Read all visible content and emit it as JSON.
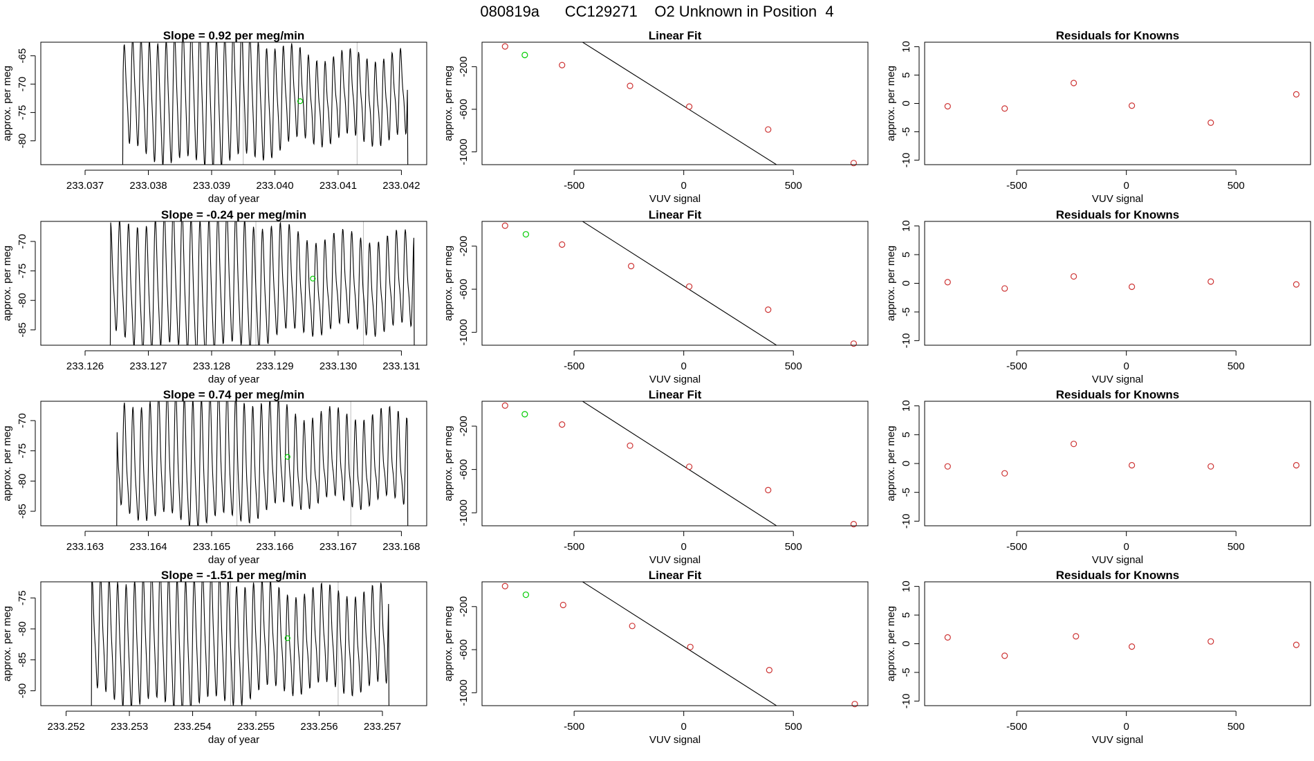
{
  "page": {
    "title": "080819a      CC129271    O2 Unknown in Position  4"
  },
  "colors": {
    "known": "#cd3333",
    "unknown": "#00cc00",
    "line": "#000000",
    "gridline": "#bebebe"
  },
  "chart_data": [
    {
      "type": "line",
      "row": 0,
      "title": "Slope =  0.92  per meg/min",
      "xlabel": "day of year",
      "ylabel": "approx. per meg",
      "xlim": [
        233.0363,
        233.0424
      ],
      "ylim": [
        -84.2,
        -62.6
      ],
      "xticks": [
        233.037,
        233.038,
        233.039,
        233.04,
        233.041,
        233.042
      ],
      "xtick_labels": [
        "233.037",
        "233.038",
        "233.039",
        "233.040",
        "233.041",
        "233.042"
      ],
      "yticks": [
        -80,
        -75,
        -70,
        -65
      ],
      "trace_start": 233.0376,
      "trace_end": 233.0421,
      "cycles": 34,
      "phase": 0.3,
      "y_base": -72.5,
      "y_amp_lo": 6.5,
      "y_amp_hi": 11,
      "vlines": [
        233.0395,
        233.0413
      ],
      "marker": {
        "x": 233.0404,
        "y": -73
      }
    },
    {
      "type": "line",
      "row": 1,
      "title": "Slope =  -0.24  per meg/min",
      "xlabel": "day of year",
      "ylabel": "approx. per meg",
      "xlim": [
        233.1253,
        233.1314
      ],
      "ylim": [
        -87.6,
        -66.6
      ],
      "xticks": [
        233.126,
        233.127,
        233.128,
        233.129,
        233.13,
        233.131
      ],
      "xtick_labels": [
        "233.126",
        "233.127",
        "233.128",
        "233.129",
        "233.130",
        "233.131"
      ],
      "yticks": [
        -85,
        -80,
        -75,
        -70
      ],
      "trace_start": 233.1264,
      "trace_end": 233.1312,
      "cycles": 34,
      "phase": 1.1,
      "y_base": -77.5,
      "y_amp_lo": 7,
      "y_amp_hi": 11,
      "vlines": [
        233.1287,
        233.1304
      ],
      "marker": {
        "x": 233.1296,
        "y": -76.3
      }
    },
    {
      "type": "line",
      "row": 2,
      "title": "Slope =  0.74  per meg/min",
      "xlabel": "day of year",
      "ylabel": "approx. per meg",
      "xlim": [
        233.1623,
        233.1684
      ],
      "ylim": [
        -87.4,
        -66.8
      ],
      "xticks": [
        233.163,
        233.164,
        233.165,
        233.166,
        233.167,
        233.168
      ],
      "xtick_labels": [
        "233.163",
        "233.164",
        "233.165",
        "233.166",
        "233.167",
        "233.168"
      ],
      "yticks": [
        -85,
        -80,
        -75,
        -70
      ],
      "trace_start": 233.1635,
      "trace_end": 233.1681,
      "cycles": 34,
      "phase": 2.0,
      "y_base": -77,
      "y_amp_lo": 6.5,
      "y_amp_hi": 10,
      "vlines": [
        233.1654,
        233.1672
      ],
      "marker": {
        "x": 233.1662,
        "y": -76
      }
    },
    {
      "type": "line",
      "row": 3,
      "title": "Slope =  -1.51  per meg/min",
      "xlabel": "day of year",
      "ylabel": "approx. per meg",
      "xlim": [
        233.2516,
        233.2577
      ],
      "ylim": [
        -92.4,
        -72.4
      ],
      "xticks": [
        233.252,
        233.253,
        233.254,
        233.255,
        233.256,
        233.257
      ],
      "xtick_labels": [
        "233.252",
        "233.253",
        "233.254",
        "233.255",
        "233.256",
        "233.257"
      ],
      "yticks": [
        -90,
        -85,
        -80,
        -75
      ],
      "trace_start": 233.2524,
      "trace_end": 233.2571,
      "cycles": 35,
      "phase": 0.7,
      "y_base": -82,
      "y_amp_lo": 7,
      "y_amp_hi": 10,
      "vlines": [
        233.2546,
        233.2563
      ],
      "marker": {
        "x": 233.2555,
        "y": -81.5
      }
    },
    {
      "type": "scatter",
      "row": 0,
      "title": "Linear Fit",
      "xlabel": "VUV signal",
      "ylabel": "approx. per meg",
      "xlim": [
        -920,
        840
      ],
      "ylim": [
        -1120,
        30
      ],
      "xticks": [
        -500,
        0,
        500
      ],
      "yticks": [
        -200,
        -600,
        -1000
      ],
      "fit": {
        "slope": -1.3,
        "intercept": -570
      },
      "known": [
        [
          -815,
          -10
        ],
        [
          -555,
          -185
        ],
        [
          -245,
          -380
        ],
        [
          25,
          -575
        ],
        [
          385,
          -790
        ],
        [
          775,
          -1105
        ]
      ],
      "unknown": [
        [
          -725,
          -90
        ]
      ]
    },
    {
      "type": "scatter",
      "row": 1,
      "title": "Linear Fit",
      "xlabel": "VUV signal",
      "ylabel": "approx. per meg",
      "xlim": [
        -920,
        840
      ],
      "ylim": [
        -1120,
        30
      ],
      "xticks": [
        -500,
        0,
        500
      ],
      "yticks": [
        -200,
        -600,
        -1000
      ],
      "fit": {
        "slope": -1.3,
        "intercept": -570
      },
      "known": [
        [
          -815,
          -10
        ],
        [
          -555,
          -185
        ],
        [
          -240,
          -385
        ],
        [
          25,
          -575
        ],
        [
          385,
          -790
        ],
        [
          775,
          -1105
        ]
      ],
      "unknown": [
        [
          -720,
          -90
        ]
      ]
    },
    {
      "type": "scatter",
      "row": 2,
      "title": "Linear Fit",
      "xlabel": "VUV signal",
      "ylabel": "approx. per meg",
      "xlim": [
        -920,
        840
      ],
      "ylim": [
        -1120,
        30
      ],
      "xticks": [
        -500,
        0,
        500
      ],
      "yticks": [
        -200,
        -600,
        -1000
      ],
      "fit": {
        "slope": -1.3,
        "intercept": -570
      },
      "known": [
        [
          -815,
          -10
        ],
        [
          -555,
          -185
        ],
        [
          -245,
          -380
        ],
        [
          25,
          -575
        ],
        [
          385,
          -790
        ],
        [
          775,
          -1105
        ]
      ],
      "unknown": [
        [
          -725,
          -90
        ]
      ]
    },
    {
      "type": "scatter",
      "row": 3,
      "title": "Linear Fit",
      "xlabel": "VUV signal",
      "ylabel": "approx. per meg",
      "xlim": [
        -920,
        840
      ],
      "ylim": [
        -1120,
        30
      ],
      "xticks": [
        -500,
        0,
        500
      ],
      "yticks": [
        -200,
        -600,
        -1000
      ],
      "fit": {
        "slope": -1.3,
        "intercept": -570
      },
      "known": [
        [
          -815,
          -10
        ],
        [
          -550,
          -185
        ],
        [
          -235,
          -380
        ],
        [
          30,
          -575
        ],
        [
          390,
          -790
        ],
        [
          780,
          -1105
        ]
      ],
      "unknown": [
        [
          -720,
          -90
        ]
      ]
    },
    {
      "type": "scatter",
      "row": 0,
      "title": "Residuals for Knowns",
      "xlabel": "VUV signal",
      "ylabel": "approx. per meg",
      "xlim": [
        -920,
        840
      ],
      "ylim": [
        -10.8,
        10.8
      ],
      "xticks": [
        -500,
        0,
        500
      ],
      "yticks": [
        -10,
        -5,
        0,
        5,
        10
      ],
      "known": [
        [
          -815,
          -0.5
        ],
        [
          -555,
          -0.9
        ],
        [
          -240,
          3.6
        ],
        [
          25,
          -0.4
        ],
        [
          385,
          -3.4
        ],
        [
          775,
          1.6
        ]
      ]
    },
    {
      "type": "scatter",
      "row": 1,
      "title": "Residuals for Knowns",
      "xlabel": "VUV signal",
      "ylabel": "approx. per meg",
      "xlim": [
        -920,
        840
      ],
      "ylim": [
        -10.8,
        10.8
      ],
      "xticks": [
        -500,
        0,
        500
      ],
      "yticks": [
        -10,
        -5,
        0,
        5,
        10
      ],
      "known": [
        [
          -815,
          0.2
        ],
        [
          -555,
          -0.9
        ],
        [
          -240,
          1.2
        ],
        [
          25,
          -0.6
        ],
        [
          385,
          0.3
        ],
        [
          775,
          -0.2
        ]
      ]
    },
    {
      "type": "scatter",
      "row": 2,
      "title": "Residuals for Knowns",
      "xlabel": "VUV signal",
      "ylabel": "approx. per meg",
      "xlim": [
        -920,
        840
      ],
      "ylim": [
        -10.8,
        10.8
      ],
      "xticks": [
        -500,
        0,
        500
      ],
      "yticks": [
        -10,
        -5,
        0,
        5,
        10
      ],
      "known": [
        [
          -815,
          -0.5
        ],
        [
          -555,
          -1.7
        ],
        [
          -240,
          3.4
        ],
        [
          25,
          -0.3
        ],
        [
          385,
          -0.5
        ],
        [
          775,
          -0.3
        ]
      ]
    },
    {
      "type": "scatter",
      "row": 3,
      "title": "Residuals for Knowns",
      "xlabel": "VUV signal",
      "ylabel": "approx. per meg",
      "xlim": [
        -920,
        840
      ],
      "ylim": [
        -10.8,
        10.8
      ],
      "xticks": [
        -500,
        0,
        500
      ],
      "yticks": [
        -10,
        -5,
        0,
        5,
        10
      ],
      "known": [
        [
          -815,
          1.1
        ],
        [
          -555,
          -2.1
        ],
        [
          -230,
          1.3
        ],
        [
          25,
          -0.5
        ],
        [
          385,
          0.4
        ],
        [
          775,
          -0.2
        ]
      ]
    }
  ]
}
